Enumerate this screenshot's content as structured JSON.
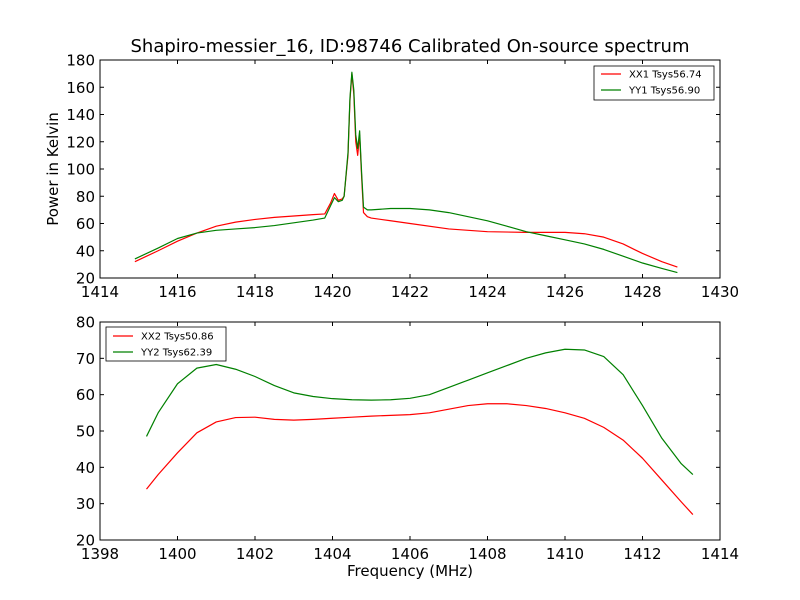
{
  "title": "Shapiro-messier_16, ID:98746 Calibrated On-source spectrum",
  "colors": {
    "xx": "#ff0000",
    "yy": "#008000"
  },
  "chart_data": [
    {
      "type": "line",
      "title": "Shapiro-messier_16, ID:98746 Calibrated On-source spectrum",
      "xlabel": "",
      "ylabel": "Power in Kelvin",
      "xlim": [
        1414,
        1430
      ],
      "ylim": [
        20,
        180
      ],
      "xticks": [
        1414,
        1416,
        1418,
        1420,
        1422,
        1424,
        1426,
        1428,
        1430
      ],
      "yticks": [
        20,
        40,
        60,
        80,
        100,
        120,
        140,
        160,
        180
      ],
      "legend_position": "top-right",
      "series": [
        {
          "name": "XX1 Tsys56.74",
          "color": "#ff0000",
          "x": [
            1414.9,
            1415.5,
            1416,
            1416.5,
            1417,
            1417.5,
            1418,
            1418.5,
            1419,
            1419.5,
            1419.8,
            1419.95,
            1420.05,
            1420.15,
            1420.25,
            1420.3,
            1420.4,
            1420.45,
            1420.5,
            1420.55,
            1420.6,
            1420.65,
            1420.7,
            1420.75,
            1420.8,
            1420.9,
            1421.0,
            1421.5,
            1422,
            1423,
            1424,
            1425,
            1426,
            1426.5,
            1427,
            1427.5,
            1428,
            1428.5,
            1428.9
          ],
          "y": [
            32,
            40,
            47,
            53,
            58,
            61,
            63,
            64.5,
            65.5,
            66.5,
            67,
            75,
            82,
            77,
            78,
            80,
            110,
            150,
            170,
            155,
            120,
            110,
            125,
            95,
            68,
            65,
            64,
            62,
            60,
            56,
            54,
            53.5,
            53.5,
            52.5,
            50,
            45,
            38,
            32,
            28
          ]
        },
        {
          "name": "YY1 Tsys56.90",
          "color": "#008000",
          "x": [
            1414.9,
            1415.5,
            1416,
            1416.5,
            1417,
            1417.5,
            1418,
            1418.5,
            1419,
            1419.5,
            1419.8,
            1419.95,
            1420.05,
            1420.15,
            1420.25,
            1420.3,
            1420.4,
            1420.45,
            1420.5,
            1420.55,
            1420.6,
            1420.65,
            1420.7,
            1420.75,
            1420.8,
            1420.9,
            1421.0,
            1421.5,
            1422,
            1422.5,
            1423,
            1423.5,
            1424,
            1424.5,
            1425,
            1425.5,
            1426,
            1426.5,
            1427,
            1427.5,
            1428,
            1428.5,
            1428.9
          ],
          "y": [
            34,
            42,
            49,
            53,
            55,
            56,
            57,
            58.5,
            60.5,
            62.5,
            64,
            73,
            79,
            76,
            77,
            80,
            112,
            152,
            171,
            158,
            125,
            115,
            128,
            98,
            72,
            70,
            70,
            71,
            71,
            70,
            68,
            65,
            62,
            58,
            54,
            51,
            48,
            45,
            41,
            36,
            31,
            27,
            24
          ]
        }
      ]
    },
    {
      "type": "line",
      "title": "",
      "xlabel": "Frequency (MHz)",
      "ylabel": "",
      "xlim": [
        1398,
        1414
      ],
      "ylim": [
        20,
        80
      ],
      "xticks": [
        1398,
        1400,
        1402,
        1404,
        1406,
        1408,
        1410,
        1412,
        1414
      ],
      "yticks": [
        20,
        30,
        40,
        50,
        60,
        70,
        80
      ],
      "legend_position": "top-left",
      "series": [
        {
          "name": "XX2 Tsys50.86",
          "color": "#ff0000",
          "x": [
            1399.2,
            1399.5,
            1400,
            1400.5,
            1401,
            1401.5,
            1402,
            1402.5,
            1403,
            1403.5,
            1404,
            1404.5,
            1405,
            1405.5,
            1406,
            1406.5,
            1407,
            1407.5,
            1408,
            1408.5,
            1409,
            1409.5,
            1410,
            1410.5,
            1411,
            1411.5,
            1412,
            1412.5,
            1413,
            1413.3
          ],
          "y": [
            34,
            38,
            44,
            49.5,
            52.5,
            53.7,
            53.8,
            53.2,
            53.0,
            53.2,
            53.5,
            53.8,
            54.1,
            54.3,
            54.5,
            55.0,
            56.0,
            57.0,
            57.5,
            57.5,
            57.0,
            56.2,
            55.0,
            53.5,
            51.0,
            47.5,
            42.5,
            36.5,
            30.5,
            27
          ]
        },
        {
          "name": "YY2 Tsys62.39",
          "color": "#008000",
          "x": [
            1399.2,
            1399.5,
            1400,
            1400.5,
            1401,
            1401.5,
            1402,
            1402.5,
            1403,
            1403.5,
            1404,
            1404.5,
            1405,
            1405.5,
            1406,
            1406.5,
            1407,
            1407.5,
            1408,
            1408.5,
            1409,
            1409.5,
            1410,
            1410.5,
            1411,
            1411.5,
            1412,
            1412.5,
            1413,
            1413.3
          ],
          "y": [
            48.5,
            55,
            63,
            67.3,
            68.3,
            67.0,
            65.0,
            62.5,
            60.5,
            59.5,
            58.9,
            58.6,
            58.5,
            58.6,
            59.0,
            60.0,
            62.0,
            64.0,
            66.0,
            68.0,
            70.0,
            71.5,
            72.5,
            72.3,
            70.5,
            65.5,
            57.0,
            48.0,
            41.0,
            38.0
          ]
        }
      ]
    }
  ]
}
